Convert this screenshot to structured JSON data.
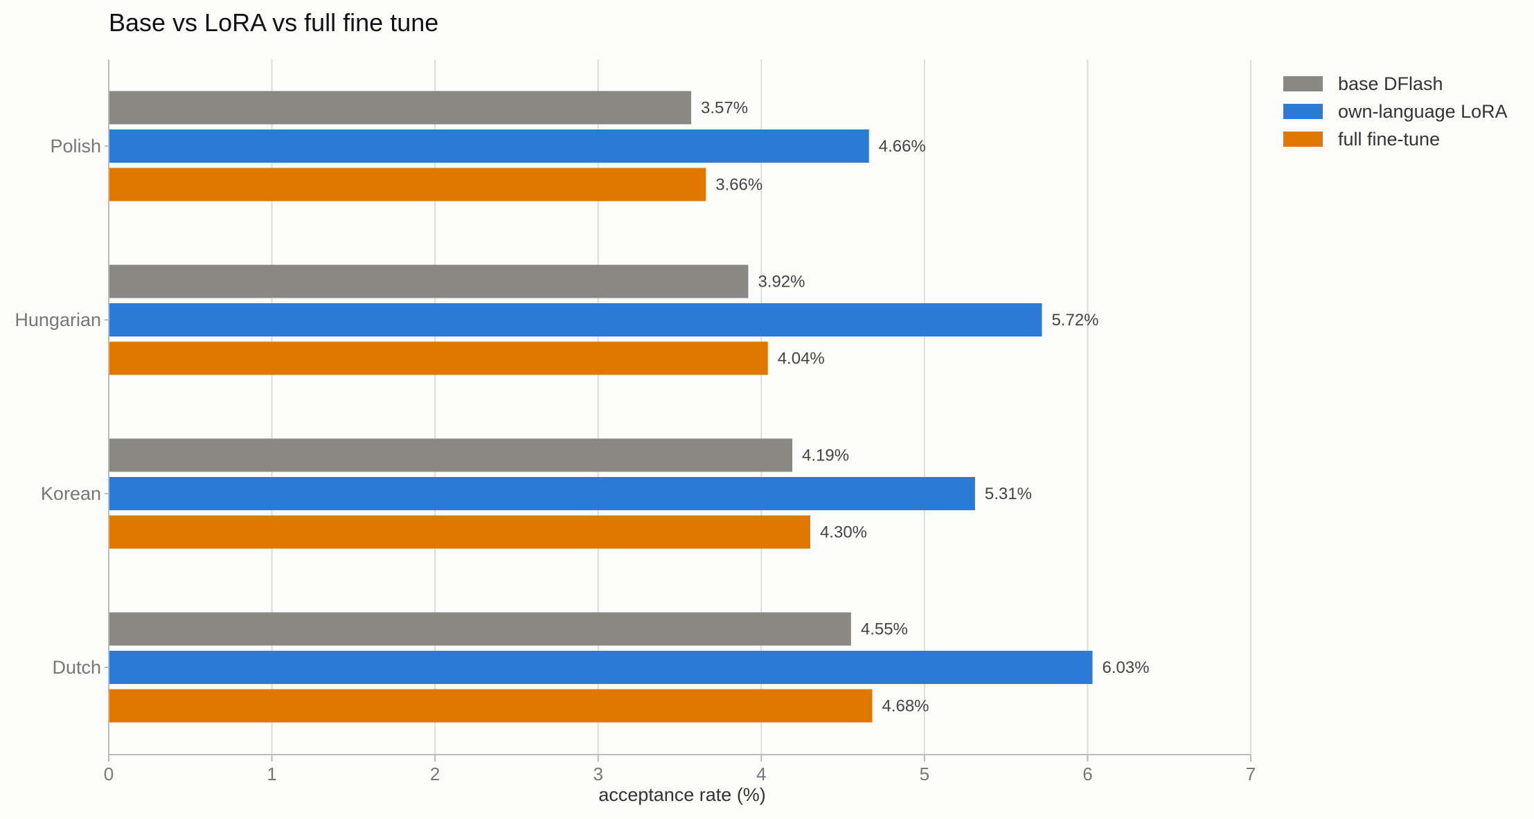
{
  "chart_data": {
    "type": "bar",
    "orientation": "horizontal",
    "title": "Base vs LoRA vs full fine tune",
    "xlabel": "acceptance rate (%)",
    "ylabel": "",
    "xlim": [
      0,
      7
    ],
    "xticks": [
      "0",
      "1",
      "2",
      "3",
      "4",
      "5",
      "6",
      "7"
    ],
    "categories": [
      "Polish",
      "Hungarian",
      "Korean",
      "Dutch"
    ],
    "series": [
      {
        "name": "base DFlash",
        "color": "#898882",
        "values": [
          3.57,
          3.92,
          4.19,
          4.55
        ],
        "labels": [
          "3.57%",
          "3.92%",
          "4.19%",
          "4.55%"
        ]
      },
      {
        "name": "own-language LoRA",
        "color": "#2b7ad6",
        "values": [
          4.66,
          5.72,
          5.31,
          6.03
        ],
        "labels": [
          "4.66%",
          "5.72%",
          "5.31%",
          "6.03%"
        ]
      },
      {
        "name": "full fine-tune",
        "color": "#e07800",
        "values": [
          3.66,
          4.04,
          4.3,
          4.68
        ],
        "labels": [
          "3.66%",
          "4.04%",
          "4.30%",
          "4.68%"
        ]
      }
    ],
    "grid": "vertical",
    "legend": "top-right"
  }
}
